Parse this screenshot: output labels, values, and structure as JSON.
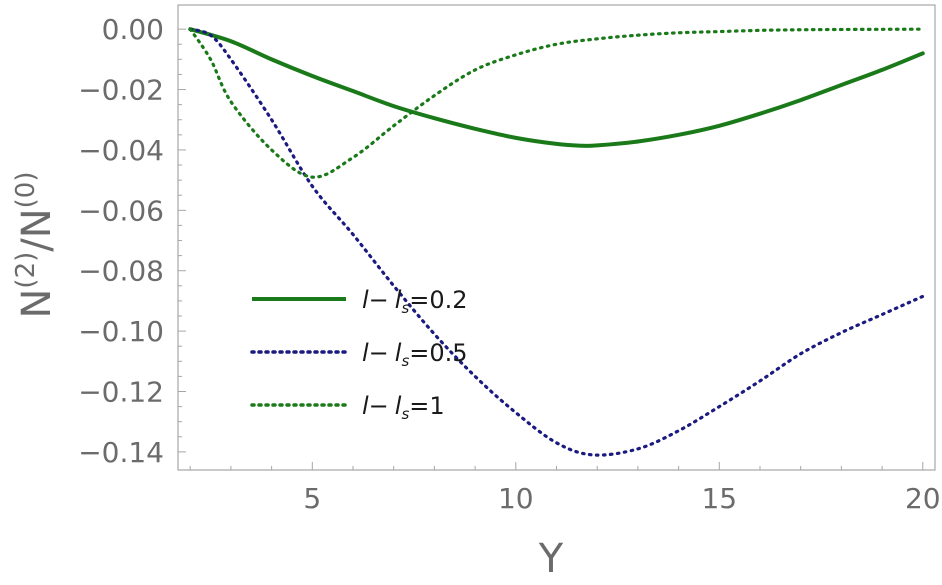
{
  "chart_data": {
    "type": "line",
    "xlabel": "Y",
    "ylabel": {
      "base1": "N",
      "sup1": "(2)",
      "sep": "/",
      "base2": "N",
      "sup2": "(0)"
    },
    "xlim": [
      1.7,
      20.3
    ],
    "ylim": [
      -0.146,
      0.008
    ],
    "x_ticks": [
      {
        "value": 5,
        "label": "5"
      },
      {
        "value": 10,
        "label": "10"
      },
      {
        "value": 15,
        "label": "15"
      },
      {
        "value": 20,
        "label": "20"
      }
    ],
    "y_ticks": [
      {
        "value": 0.0,
        "label": "0.00"
      },
      {
        "value": -0.02,
        "label": "−0.02"
      },
      {
        "value": -0.04,
        "label": "−0.04"
      },
      {
        "value": -0.06,
        "label": "−0.06"
      },
      {
        "value": -0.08,
        "label": "−0.08"
      },
      {
        "value": -0.1,
        "label": "−0.10"
      },
      {
        "value": -0.12,
        "label": "−0.12"
      },
      {
        "value": -0.14,
        "label": "−0.14"
      }
    ],
    "grid": false,
    "legend_position": "left",
    "series": [
      {
        "name": "l− l_s=0.2",
        "legend": {
          "l": "l",
          "dash": "−",
          "ls": "l",
          "sub": "s",
          "eq": "=0.2"
        },
        "color": "#1a7a1a",
        "style": "solid",
        "x": [
          2,
          3,
          4,
          5,
          6,
          7,
          8,
          9,
          10,
          11,
          11.6,
          12,
          13,
          14,
          15,
          16,
          17,
          18,
          19,
          20
        ],
        "y": [
          0.0,
          -0.004,
          -0.01,
          -0.0155,
          -0.0205,
          -0.0255,
          -0.0295,
          -0.033,
          -0.036,
          -0.038,
          -0.0386,
          -0.0385,
          -0.0372,
          -0.035,
          -0.032,
          -0.028,
          -0.0235,
          -0.0185,
          -0.0135,
          -0.008
        ]
      },
      {
        "name": "l− l_s=0.5",
        "legend": {
          "l": "l",
          "dash": "−",
          "ls": "l",
          "sub": "s",
          "eq": "=0.5"
        },
        "color": "#1a1a80",
        "style": "dotted",
        "x": [
          2,
          2.5,
          3,
          4,
          5,
          6,
          7,
          8,
          9,
          10,
          11,
          11.9,
          13,
          14,
          15,
          16,
          17,
          18,
          19,
          20
        ],
        "y": [
          0.0,
          -0.002,
          -0.01,
          -0.03,
          -0.052,
          -0.068,
          -0.085,
          -0.101,
          -0.115,
          -0.127,
          -0.137,
          -0.141,
          -0.139,
          -0.133,
          -0.125,
          -0.1165,
          -0.1075,
          -0.1005,
          -0.0945,
          -0.0885
        ]
      },
      {
        "name": "l− l_s=1",
        "legend": {
          "l": "l",
          "dash": "−",
          "ls": "l",
          "sub": "s",
          "eq": "=1"
        },
        "color": "#1a7a1a",
        "style": "dotted",
        "x": [
          2,
          2.5,
          3,
          4,
          5,
          6,
          7,
          8,
          9,
          10,
          11,
          12,
          13,
          14,
          15,
          16,
          17,
          18,
          19,
          20
        ],
        "y": [
          0.0,
          -0.01,
          -0.024,
          -0.04,
          -0.049,
          -0.0425,
          -0.032,
          -0.022,
          -0.0135,
          -0.0085,
          -0.005,
          -0.0032,
          -0.002,
          -0.0012,
          -0.0008,
          -0.0004,
          -0.0002,
          -0.0001,
          -5e-05,
          0.0
        ]
      }
    ]
  }
}
